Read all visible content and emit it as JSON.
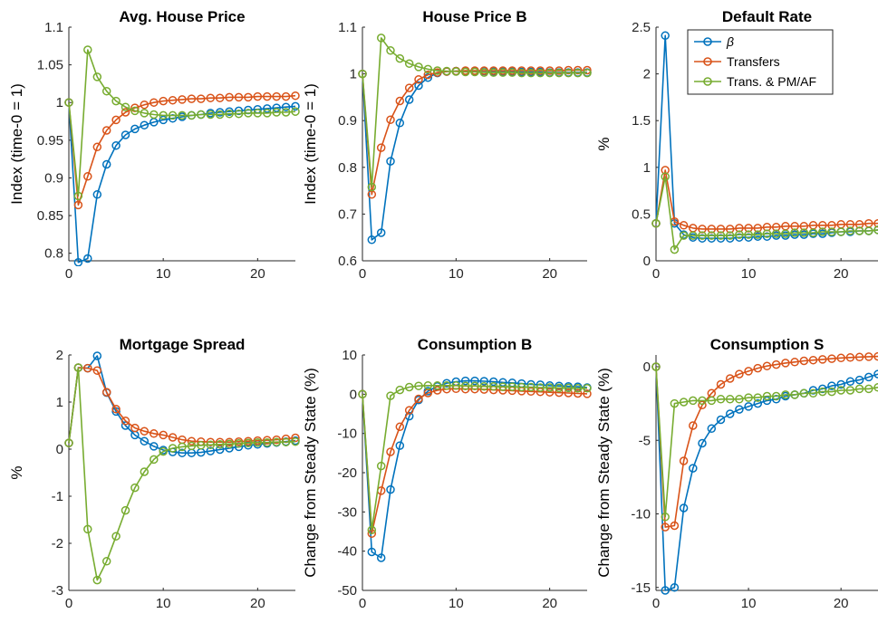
{
  "chart_data": [
    {
      "type": "line",
      "title": "Avg. House Price",
      "xlabel": "",
      "ylabel": "Index (time-0 = 1)",
      "xlim": [
        0,
        24
      ],
      "ylim": [
        0.79,
        1.1
      ],
      "xticks": [
        0,
        10,
        20
      ],
      "yticks": [
        0.8,
        0.85,
        0.9,
        0.95,
        1,
        1.05,
        1.1
      ],
      "yticklabels": [
        "0.8",
        "0.85",
        "0.9",
        "0.95",
        "1",
        "1.05",
        "1.1"
      ],
      "x": [
        0,
        1,
        2,
        3,
        4,
        5,
        6,
        7,
        8,
        9,
        10,
        11,
        12,
        13,
        14,
        15,
        16,
        17,
        18,
        19,
        20,
        21,
        22,
        23,
        24
      ],
      "series": [
        {
          "name": "β",
          "values": [
            1.0,
            0.788,
            0.793,
            0.878,
            0.918,
            0.943,
            0.957,
            0.965,
            0.97,
            0.974,
            0.977,
            0.979,
            0.981,
            0.983,
            0.984,
            0.986,
            0.987,
            0.988,
            0.989,
            0.99,
            0.991,
            0.992,
            0.993,
            0.994,
            0.995
          ]
        },
        {
          "name": "Transfers",
          "values": [
            1.0,
            0.864,
            0.902,
            0.941,
            0.963,
            0.977,
            0.987,
            0.993,
            0.997,
            1.0,
            1.002,
            1.003,
            1.004,
            1.005,
            1.005,
            1.006,
            1.006,
            1.007,
            1.007,
            1.007,
            1.008,
            1.008,
            1.008,
            1.008,
            1.009
          ]
        },
        {
          "name": "Trans. & PM/AF",
          "values": [
            1.0,
            0.876,
            1.07,
            1.034,
            1.015,
            1.002,
            0.994,
            0.989,
            0.986,
            0.984,
            0.983,
            0.983,
            0.983,
            0.983,
            0.984,
            0.984,
            0.984,
            0.985,
            0.985,
            0.986,
            0.986,
            0.986,
            0.987,
            0.987,
            0.988
          ]
        }
      ]
    },
    {
      "type": "line",
      "title": "House Price B",
      "xlabel": "",
      "ylabel": "Index (time-0 = 1)",
      "xlim": [
        0,
        24
      ],
      "ylim": [
        0.6,
        1.1
      ],
      "xticks": [
        0,
        10,
        20
      ],
      "yticks": [
        0.6,
        0.7,
        0.8,
        0.9,
        1,
        1.1
      ],
      "yticklabels": [
        "0.6",
        "0.7",
        "0.8",
        "0.9",
        "1",
        "1.1"
      ],
      "x": [
        0,
        1,
        2,
        3,
        4,
        5,
        6,
        7,
        8,
        9,
        10,
        11,
        12,
        13,
        14,
        15,
        16,
        17,
        18,
        19,
        20,
        21,
        22,
        23,
        24
      ],
      "series": [
        {
          "name": "β",
          "values": [
            1.0,
            0.645,
            0.66,
            0.813,
            0.895,
            0.945,
            0.975,
            0.992,
            1.002,
            1.005,
            1.006,
            1.006,
            1.006,
            1.006,
            1.005,
            1.005,
            1.005,
            1.004,
            1.004,
            1.004,
            1.003,
            1.003,
            1.003,
            1.003,
            1.003
          ]
        },
        {
          "name": "Transfers",
          "values": [
            1.0,
            0.742,
            0.842,
            0.902,
            0.942,
            0.97,
            0.988,
            0.998,
            1.003,
            1.005,
            1.006,
            1.007,
            1.007,
            1.007,
            1.007,
            1.007,
            1.007,
            1.007,
            1.007,
            1.007,
            1.007,
            1.007,
            1.008,
            1.008,
            1.008
          ]
        },
        {
          "name": "Trans. & PM/AF",
          "values": [
            1.0,
            0.758,
            1.077,
            1.05,
            1.033,
            1.022,
            1.015,
            1.01,
            1.007,
            1.006,
            1.005,
            1.004,
            1.004,
            1.003,
            1.003,
            1.003,
            1.003,
            1.002,
            1.002,
            1.002,
            1.002,
            1.002,
            1.002,
            1.002,
            1.002
          ]
        }
      ]
    },
    {
      "type": "line",
      "title": "Default Rate",
      "xlabel": "",
      "ylabel": "%",
      "xlim": [
        0,
        24
      ],
      "ylim": [
        0,
        2.5
      ],
      "xticks": [
        0,
        10,
        20
      ],
      "yticks": [
        0,
        0.5,
        1,
        1.5,
        2,
        2.5
      ],
      "yticklabels": [
        "0",
        "0.5",
        "1",
        "1.5",
        "2",
        "2.5"
      ],
      "x": [
        0,
        1,
        2,
        3,
        4,
        5,
        6,
        7,
        8,
        9,
        10,
        11,
        12,
        13,
        14,
        15,
        16,
        17,
        18,
        19,
        20,
        21,
        22,
        23,
        24
      ],
      "series": [
        {
          "name": "β",
          "values": [
            0.4,
            2.41,
            0.4,
            0.28,
            0.25,
            0.24,
            0.24,
            0.24,
            0.24,
            0.25,
            0.25,
            0.26,
            0.26,
            0.27,
            0.27,
            0.28,
            0.28,
            0.29,
            0.29,
            0.3,
            0.31,
            0.31,
            0.32,
            0.32,
            0.33
          ]
        },
        {
          "name": "Transfers",
          "values": [
            0.4,
            0.97,
            0.42,
            0.38,
            0.35,
            0.34,
            0.34,
            0.34,
            0.34,
            0.35,
            0.35,
            0.35,
            0.36,
            0.36,
            0.37,
            0.37,
            0.37,
            0.38,
            0.38,
            0.38,
            0.39,
            0.39,
            0.39,
            0.4,
            0.4
          ]
        },
        {
          "name": "Trans. & PM/AF",
          "values": [
            0.4,
            0.9,
            0.12,
            0.27,
            0.27,
            0.27,
            0.27,
            0.27,
            0.27,
            0.28,
            0.28,
            0.28,
            0.29,
            0.29,
            0.29,
            0.3,
            0.3,
            0.3,
            0.31,
            0.31,
            0.31,
            0.32,
            0.32,
            0.32,
            0.33
          ]
        }
      ],
      "legend": "top-right"
    },
    {
      "type": "line",
      "title": "Mortgage Spread",
      "xlabel": "",
      "ylabel": "%",
      "xlim": [
        0,
        24
      ],
      "ylim": [
        -3,
        2
      ],
      "xticks": [
        0,
        10,
        20
      ],
      "yticks": [
        -3,
        -2,
        -1,
        0,
        1,
        2
      ],
      "yticklabels": [
        "-3",
        "-2",
        "-1",
        "0",
        "1",
        "2"
      ],
      "x": [
        0,
        1,
        2,
        3,
        4,
        5,
        6,
        7,
        8,
        9,
        10,
        11,
        12,
        13,
        14,
        15,
        16,
        17,
        18,
        19,
        20,
        21,
        22,
        23,
        24
      ],
      "series": [
        {
          "name": "β",
          "values": [
            0.13,
            1.73,
            1.72,
            1.98,
            1.2,
            0.8,
            0.5,
            0.3,
            0.17,
            0.06,
            -0.02,
            -0.06,
            -0.08,
            -0.08,
            -0.07,
            -0.04,
            -0.01,
            0.02,
            0.05,
            0.08,
            0.1,
            0.12,
            0.14,
            0.16,
            0.18
          ]
        },
        {
          "name": "Transfers",
          "values": [
            0.13,
            1.73,
            1.72,
            1.67,
            1.21,
            0.85,
            0.6,
            0.45,
            0.38,
            0.33,
            0.3,
            0.25,
            0.2,
            0.17,
            0.16,
            0.15,
            0.15,
            0.15,
            0.16,
            0.17,
            0.18,
            0.19,
            0.2,
            0.22,
            0.24
          ]
        },
        {
          "name": "Trans. & PM/AF",
          "values": [
            0.13,
            1.73,
            -1.7,
            -2.78,
            -2.38,
            -1.85,
            -1.3,
            -0.82,
            -0.48,
            -0.22,
            -0.05,
            0.02,
            0.05,
            0.07,
            0.08,
            0.09,
            0.1,
            0.11,
            0.12,
            0.13,
            0.14,
            0.14,
            0.15,
            0.15,
            0.16
          ]
        }
      ]
    },
    {
      "type": "line",
      "title": "Consumption B",
      "xlabel": "",
      "ylabel": "Change from Steady State (%)",
      "xlim": [
        0,
        24
      ],
      "ylim": [
        -50,
        10
      ],
      "xticks": [
        0,
        10,
        20
      ],
      "yticks": [
        -50,
        -40,
        -30,
        -20,
        -10,
        0,
        10
      ],
      "yticklabels": [
        "-50",
        "-40",
        "-30",
        "-20",
        "-10",
        "0",
        "10"
      ],
      "x": [
        0,
        1,
        2,
        3,
        4,
        5,
        6,
        7,
        8,
        9,
        10,
        11,
        12,
        13,
        14,
        15,
        16,
        17,
        18,
        19,
        20,
        21,
        22,
        23,
        24
      ],
      "series": [
        {
          "name": "β",
          "values": [
            0,
            -40.2,
            -41.7,
            -24.3,
            -13.1,
            -5.6,
            -1.5,
            0.8,
            2.0,
            2.8,
            3.2,
            3.4,
            3.4,
            3.3,
            3.2,
            3.0,
            2.9,
            2.7,
            2.5,
            2.4,
            2.2,
            2.1,
            2.0,
            1.9,
            1.7
          ]
        },
        {
          "name": "Transfers",
          "values": [
            0,
            -35.5,
            -24.6,
            -14.7,
            -8.3,
            -4.1,
            -1.2,
            0.3,
            1.0,
            1.3,
            1.4,
            1.3,
            1.3,
            1.2,
            1.1,
            1.0,
            0.9,
            0.8,
            0.7,
            0.6,
            0.5,
            0.4,
            0.3,
            0.2,
            0.1
          ]
        },
        {
          "name": "Trans. & PM/AF",
          "values": [
            0,
            -34.6,
            -18.3,
            -0.4,
            1.1,
            1.8,
            2.1,
            2.2,
            2.2,
            2.2,
            2.2,
            2.1,
            2.1,
            2.0,
            2.0,
            1.9,
            1.9,
            1.8,
            1.8,
            1.7,
            1.7,
            1.6,
            1.6,
            1.5,
            1.5
          ]
        }
      ]
    },
    {
      "type": "line",
      "title": "Consumption S",
      "xlabel": "",
      "ylabel": "Change from Steady State (%)",
      "xlim": [
        0,
        24
      ],
      "ylim": [
        -15.2,
        0.8
      ],
      "xticks": [
        0,
        10,
        20
      ],
      "yticks": [
        -15,
        -10,
        -5,
        0
      ],
      "yticklabels": [
        "-15",
        "-10",
        "-5",
        "0"
      ],
      "x": [
        0,
        1,
        2,
        3,
        4,
        5,
        6,
        7,
        8,
        9,
        10,
        11,
        12,
        13,
        14,
        15,
        16,
        17,
        18,
        19,
        20,
        21,
        22,
        23,
        24
      ],
      "series": [
        {
          "name": "β",
          "values": [
            0,
            -15.2,
            -15.0,
            -9.6,
            -6.9,
            -5.2,
            -4.2,
            -3.6,
            -3.2,
            -2.9,
            -2.7,
            -2.5,
            -2.3,
            -2.2,
            -2.0,
            -1.9,
            -1.8,
            -1.6,
            -1.5,
            -1.3,
            -1.2,
            -1.0,
            -0.9,
            -0.7,
            -0.5
          ]
        },
        {
          "name": "Transfers",
          "values": [
            0,
            -10.9,
            -10.8,
            -6.4,
            -4.0,
            -2.6,
            -1.8,
            -1.2,
            -0.8,
            -0.5,
            -0.3,
            -0.1,
            0.05,
            0.15,
            0.25,
            0.32,
            0.4,
            0.45,
            0.5,
            0.55,
            0.6,
            0.63,
            0.66,
            0.68,
            0.7
          ]
        },
        {
          "name": "Trans. & PM/AF",
          "values": [
            0,
            -10.2,
            -2.5,
            -2.4,
            -2.3,
            -2.3,
            -2.3,
            -2.2,
            -2.2,
            -2.2,
            -2.1,
            -2.1,
            -2.0,
            -2.0,
            -1.9,
            -1.9,
            -1.8,
            -1.8,
            -1.7,
            -1.7,
            -1.6,
            -1.6,
            -1.5,
            -1.5,
            -1.4
          ]
        }
      ]
    }
  ],
  "colors": {
    "β": "#0072BD",
    "Transfers": "#D95319",
    "Trans. & PM/AF": "#77AC30"
  },
  "legend": {
    "items": [
      "β",
      "Transfers",
      "Trans. & PM/AF"
    ]
  }
}
